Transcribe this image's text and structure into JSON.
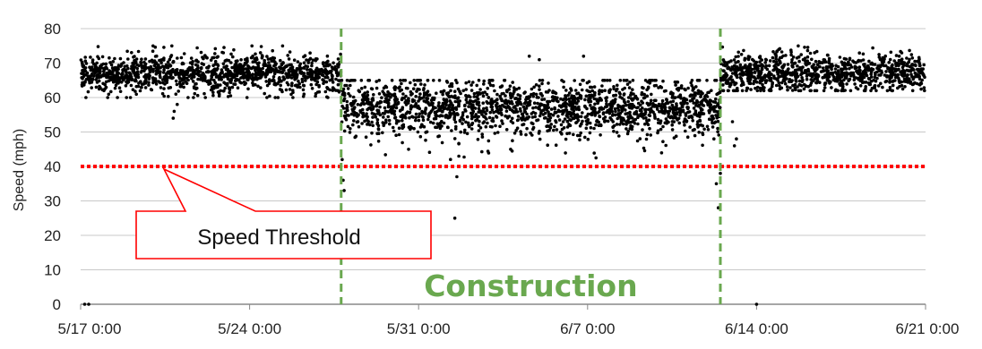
{
  "chart_data": {
    "type": "scatter",
    "title": "",
    "xlabel": "",
    "ylabel": "Speed (mph)",
    "ylim": [
      0,
      80
    ],
    "yticks": [
      0,
      10,
      20,
      30,
      40,
      50,
      60,
      70,
      80
    ],
    "xlim": [
      "2016-05-17T00:00",
      "2016-06-21T00:00"
    ],
    "xtick_labels": [
      "5/17 0:00",
      "5/24 0:00",
      "5/31 0:00",
      "6/7 0:00",
      "6/14 0:00",
      "6/21 0:00"
    ],
    "xtick_dates": [
      "2016-05-17T00:00",
      "2016-05-24T00:00",
      "2016-05-31T00:00",
      "2016-06-07T00:00",
      "2016-06-14T00:00",
      "2016-06-21T00:00"
    ],
    "grid": "horizontal",
    "threshold": {
      "value": 40,
      "label": "Speed Threshold",
      "color": "#ff0000"
    },
    "construction": {
      "start": "2016-05-27T19:00",
      "end": "2016-06-12T12:00",
      "label": "Construction",
      "color": "#6aa84f"
    },
    "marker_color": "#000000",
    "series": [
      {
        "segment": "pre-construction",
        "from": "2016-05-17T00:00",
        "to": "2016-05-27T19:00",
        "typical_speed": 67,
        "range": [
          60,
          75
        ]
      },
      {
        "segment": "construction",
        "from": "2016-05-27T19:00",
        "to": "2016-06-12T12:00",
        "typical_speed": 57,
        "range": [
          40,
          65
        ]
      },
      {
        "segment": "post-construction",
        "from": "2016-06-12T12:00",
        "to": "2016-06-21T00:00",
        "typical_speed": 67,
        "range": [
          62,
          75
        ]
      }
    ],
    "outliers": [
      {
        "x": "2016-05-20T20:00",
        "y": 54
      },
      {
        "x": "2016-05-20T21:00",
        "y": 56
      },
      {
        "x": "2016-05-21T00:00",
        "y": 58
      },
      {
        "x": "2016-05-20T00:00",
        "y": 75
      },
      {
        "x": "2016-05-27T20:00",
        "y": 42
      },
      {
        "x": "2016-05-27T21:00",
        "y": 36
      },
      {
        "x": "2016-05-27T22:00",
        "y": 33
      },
      {
        "x": "2016-05-28T01:00",
        "y": 65
      },
      {
        "x": "2016-06-01T12:00",
        "y": 25
      },
      {
        "x": "2016-06-01T14:00",
        "y": 37
      },
      {
        "x": "2016-06-01T16:00",
        "y": 43
      },
      {
        "x": "2016-05-30T14:00",
        "y": 45
      },
      {
        "x": "2016-06-04T14:00",
        "y": 72
      },
      {
        "x": "2016-06-05T00:00",
        "y": 71
      },
      {
        "x": "2016-06-06T20:00",
        "y": 72
      },
      {
        "x": "2016-06-12T10:00",
        "y": 28
      },
      {
        "x": "2016-06-12T08:00",
        "y": 35
      },
      {
        "x": "2016-06-12T12:00",
        "y": 38
      },
      {
        "x": "2016-06-13T00:00",
        "y": 53
      },
      {
        "x": "2016-06-13T04:00",
        "y": 48
      },
      {
        "x": "2016-06-13T02:00",
        "y": 46
      },
      {
        "x": "2016-05-17T04:00",
        "y": 0
      },
      {
        "x": "2016-05-17T08:00",
        "y": 0
      },
      {
        "x": "2016-06-14T00:00",
        "y": 0
      }
    ]
  }
}
